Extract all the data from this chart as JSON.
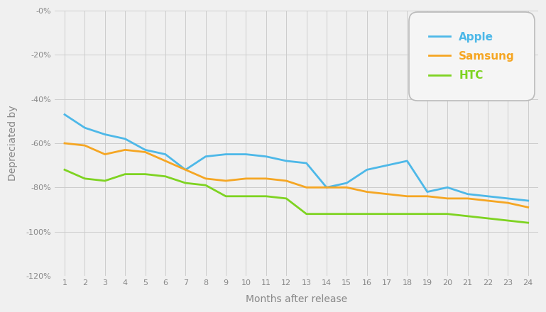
{
  "months": [
    1,
    2,
    3,
    4,
    5,
    6,
    7,
    8,
    9,
    10,
    11,
    12,
    13,
    14,
    15,
    16,
    17,
    18,
    19,
    20,
    21,
    22,
    23,
    24
  ],
  "apple": [
    -47,
    -53,
    -56,
    -58,
    -63,
    -65,
    -72,
    -66,
    -65,
    -65,
    -66,
    -68,
    -69,
    -80,
    -78,
    -72,
    -70,
    -68,
    -82,
    -80,
    -83,
    -84,
    -85,
    -86
  ],
  "samsung": [
    -60,
    -61,
    -65,
    -63,
    -64,
    -68,
    -72,
    -76,
    -77,
    -76,
    -76,
    -77,
    -80,
    -80,
    -80,
    -82,
    -83,
    -84,
    -84,
    -85,
    -85,
    -86,
    -87,
    -89
  ],
  "htc": [
    -72,
    -76,
    -77,
    -74,
    -74,
    -75,
    -78,
    -79,
    -84,
    -84,
    -84,
    -85,
    -92,
    -92,
    -92,
    -92,
    -92,
    -92,
    -92,
    -92,
    -93,
    -94,
    -95,
    -96
  ],
  "apple_color": "#4db8e8",
  "samsung_color": "#f5a623",
  "htc_color": "#7ed321",
  "background_color": "#f0f0f0",
  "grid_color": "#cccccc",
  "xlabel": "Months after release",
  "ylabel": "Depreciated by",
  "ylim": [
    -120,
    0
  ],
  "yticks": [
    0,
    -20,
    -40,
    -60,
    -80,
    -100,
    -120
  ],
  "ytick_labels": [
    "-0%",
    "-20%",
    "-40%",
    "-60%",
    "-80%",
    "-100%",
    "-120%"
  ],
  "legend_labels": [
    "Apple",
    "Samsung",
    "HTC"
  ]
}
